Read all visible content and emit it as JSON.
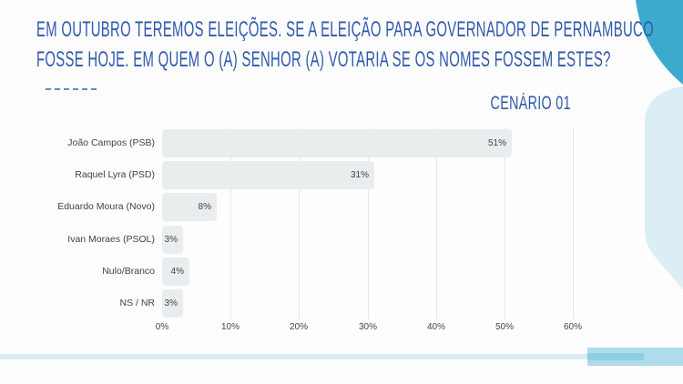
{
  "page": {
    "background": "#fdfdfd"
  },
  "header": {
    "title_line1": "EM OUTUBRO TEREMOS ELEIÇÕES. SE A ELEIÇÃO PARA GOVERNADOR DE PERNAMBUCO",
    "title_line2": "FOSSE HOJE. EM QUEM O (A) SENHOR (A) VOTARIA SE OS NOMES FOSSEM ESTES?",
    "title_color": "#2f58ad",
    "scenario_label": "CENÁRIO 01"
  },
  "chart_data": {
    "type": "bar",
    "orientation": "horizontal",
    "categories": [
      "João Campos (PSB)",
      "Raquel Lyra (PSD)",
      "Eduardo Moura (Novo)",
      "Ivan Moraes (PSOL)",
      "Nulo/Branco",
      "NS / NR"
    ],
    "values": [
      51,
      31,
      8,
      3,
      4,
      3
    ],
    "value_labels": [
      "51%",
      "31%",
      "8%",
      "3%",
      "4%",
      "3%"
    ],
    "x_ticks": [
      "0%",
      "10%",
      "20%",
      "30%",
      "40%",
      "50%",
      "60%"
    ],
    "xlim": [
      0,
      60
    ],
    "grid": true,
    "legend": false,
    "bar_color": "#e9edee",
    "grid_color": "#e2e6e8",
    "text_color": "#3d4349"
  },
  "decor": {
    "teal_blob_color": "#3caacd",
    "light_blob_color": "#dbedf5",
    "strip_thin_color": "#d9ecf4",
    "strip_block_color": "#aedcec",
    "strip_inner_color": "#8fcfe6"
  }
}
